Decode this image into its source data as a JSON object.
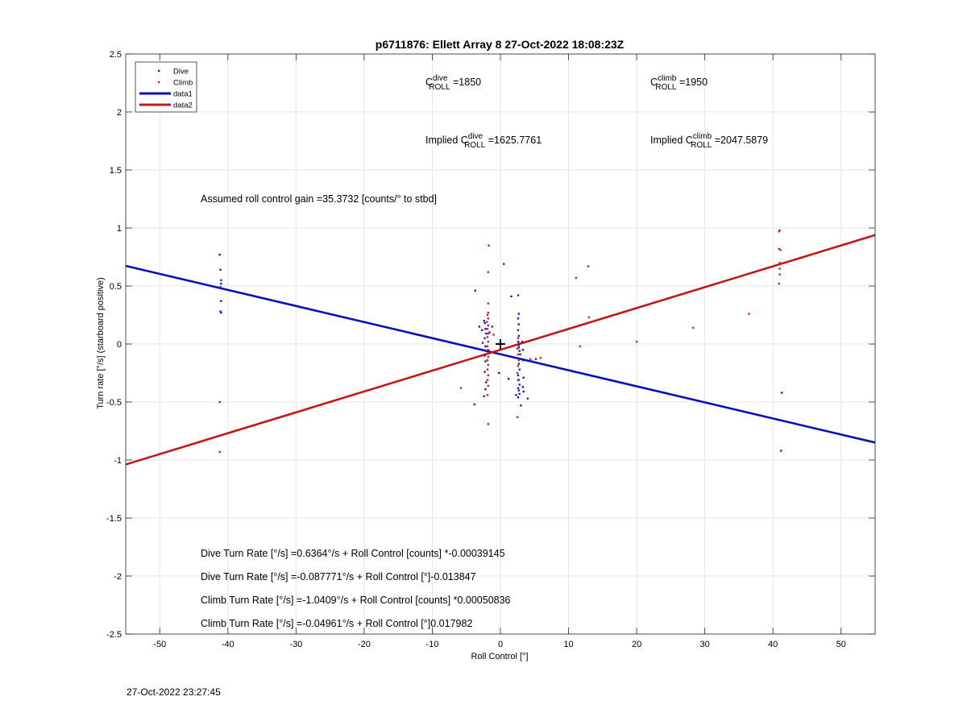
{
  "chart_data": {
    "type": "scatter",
    "title": "p6711876: Ellett Array 8 27-Oct-2022 18:08:23Z",
    "xlabel": "Roll Control [°]",
    "ylabel": "Turn rate [°/s] (starboard positive)",
    "xlim": [
      -55,
      55
    ],
    "ylim": [
      -2.5,
      2.5
    ],
    "x_ticks": [
      -50,
      -40,
      -30,
      -20,
      -10,
      0,
      10,
      20,
      30,
      40,
      50
    ],
    "y_ticks": [
      -2.5,
      -2,
      -1.5,
      -1,
      -0.5,
      0,
      0.5,
      1,
      1.5,
      2,
      2.5
    ],
    "x_tick_labels": [
      "-50",
      "-40",
      "-30",
      "-20",
      "-10",
      "0",
      "10",
      "20",
      "30",
      "40",
      "50"
    ],
    "y_tick_labels": [
      "-2.5",
      "-2",
      "-1.5",
      "-1",
      "-0.5",
      "0",
      "0.5",
      "1",
      "1.5",
      "2",
      "2.5"
    ],
    "grid": true,
    "legend_position": "top-left",
    "legend": [
      {
        "label": "Dive",
        "kind": "marker",
        "color": "#1f1fbf"
      },
      {
        "label": "Climb",
        "kind": "marker",
        "color": "#d42020"
      },
      {
        "label": "data1",
        "kind": "line",
        "color": "#0a10b8"
      },
      {
        "label": "data2",
        "kind": "line",
        "color": "#c41818"
      }
    ],
    "series": [
      {
        "name": "Dive",
        "color": "#1f1fbf",
        "points": [
          [
            -41.2,
            0.77
          ],
          [
            -41.1,
            0.64
          ],
          [
            -41.0,
            0.55
          ],
          [
            -41.0,
            0.52
          ],
          [
            -41.1,
            0.49
          ],
          [
            -41.0,
            0.37
          ],
          [
            -41.1,
            0.28
          ],
          [
            -41.0,
            0.27
          ],
          [
            -3.7,
            0.46
          ],
          [
            -3.1,
            0.15
          ],
          [
            -2.7,
            0.12
          ],
          [
            -2.4,
            0.2
          ],
          [
            -2.3,
            0.18
          ],
          [
            -2.2,
            0.13
          ],
          [
            -2.1,
            0.09
          ],
          [
            -2.3,
            0.05
          ],
          [
            -2.2,
            -0.02
          ],
          [
            -2.1,
            -0.06
          ],
          [
            -2.3,
            -0.1
          ],
          [
            -2.2,
            -0.15
          ],
          [
            -2.3,
            -0.24
          ],
          [
            -2.1,
            -0.33
          ],
          [
            -2.2,
            -0.39
          ],
          [
            -2.4,
            -0.45
          ],
          [
            -3.8,
            -0.52
          ],
          [
            -2.6,
            0.01
          ],
          [
            -1.6,
            0.1
          ],
          [
            -1.2,
            0.15
          ],
          [
            0.5,
            0.69
          ],
          [
            -0.2,
            -0.25
          ],
          [
            1.2,
            -0.3
          ],
          [
            1.6,
            0.41
          ],
          [
            2.3,
            -0.44
          ],
          [
            2.6,
            0.42
          ],
          [
            2.7,
            0.26
          ],
          [
            2.6,
            0.22
          ],
          [
            2.7,
            0.17
          ],
          [
            2.6,
            0.12
          ],
          [
            2.7,
            0.07
          ],
          [
            2.6,
            0.02
          ],
          [
            2.7,
            -0.01
          ],
          [
            2.7,
            -0.03
          ],
          [
            2.8,
            -0.06
          ],
          [
            2.9,
            -0.09
          ],
          [
            2.8,
            -0.13
          ],
          [
            2.7,
            -0.17
          ],
          [
            2.8,
            -0.22
          ],
          [
            2.6,
            -0.27
          ],
          [
            2.7,
            -0.31
          ],
          [
            2.8,
            -0.35
          ],
          [
            2.6,
            -0.38
          ],
          [
            2.7,
            -0.4
          ],
          [
            2.8,
            -0.43
          ],
          [
            2.6,
            -0.46
          ],
          [
            3.0,
            -0.53
          ],
          [
            3.2,
            0.02
          ],
          [
            3.3,
            -0.05
          ],
          [
            3.3,
            -0.14
          ],
          [
            3.4,
            -0.29
          ],
          [
            3.3,
            -0.37
          ],
          [
            3.4,
            -0.41
          ],
          [
            4.0,
            -0.47
          ],
          [
            5.2,
            -0.13
          ],
          [
            4.7,
            -0.15
          ],
          [
            41.3,
            -0.42
          ],
          [
            41.2,
            -0.92
          ]
        ]
      },
      {
        "name": "Climb",
        "color": "#d42020",
        "points": [
          [
            -41.2,
            -0.5
          ],
          [
            -41.2,
            -0.93
          ],
          [
            -1.7,
            0.85
          ],
          [
            -1.8,
            0.62
          ],
          [
            -1.8,
            0.35
          ],
          [
            -1.8,
            0.27
          ],
          [
            -1.9,
            0.25
          ],
          [
            -1.8,
            0.22
          ],
          [
            -2.0,
            0.19
          ],
          [
            -1.8,
            0.16
          ],
          [
            -1.9,
            0.13
          ],
          [
            -1.8,
            0.09
          ],
          [
            -1.9,
            0.06
          ],
          [
            -1.8,
            0.02
          ],
          [
            -1.9,
            -0.02
          ],
          [
            -1.8,
            -0.05
          ],
          [
            -1.9,
            -0.08
          ],
          [
            -1.8,
            -0.11
          ],
          [
            -1.9,
            -0.14
          ],
          [
            -1.8,
            -0.18
          ],
          [
            -1.9,
            -0.22
          ],
          [
            -1.8,
            -0.27
          ],
          [
            -1.9,
            -0.31
          ],
          [
            -1.8,
            -0.36
          ],
          [
            -1.9,
            -0.44
          ],
          [
            -1.8,
            -0.69
          ],
          [
            -5.8,
            -0.38
          ],
          [
            -1.0,
            0.08
          ],
          [
            2.6,
            0.05
          ],
          [
            2.7,
            0.01
          ],
          [
            2.5,
            -0.04
          ],
          [
            2.6,
            -0.09
          ],
          [
            2.7,
            -0.14
          ],
          [
            2.6,
            -0.19
          ],
          [
            2.5,
            -0.25
          ],
          [
            2.6,
            -0.31
          ],
          [
            2.5,
            -0.63
          ],
          [
            5.9,
            -0.12
          ],
          [
            4.4,
            -0.13
          ],
          [
            11.1,
            0.57
          ],
          [
            12.9,
            0.67
          ],
          [
            13.0,
            0.23
          ],
          [
            11.7,
            -0.02
          ],
          [
            20.0,
            0.02
          ],
          [
            28.3,
            0.14
          ],
          [
            36.5,
            0.26
          ],
          [
            41.0,
            0.98
          ],
          [
            40.9,
            0.97
          ],
          [
            40.9,
            0.82
          ],
          [
            41.1,
            0.81
          ],
          [
            41.0,
            0.7
          ],
          [
            41.0,
            0.65
          ],
          [
            41.0,
            0.6
          ],
          [
            40.9,
            0.52
          ]
        ]
      },
      {
        "name": "data1",
        "color": "#0a10b8",
        "line": {
          "intercept": -0.087771,
          "slope": -0.013847
        }
      },
      {
        "name": "data2",
        "color": "#c41818",
        "line": {
          "intercept": -0.04961,
          "slope": 0.017982
        }
      }
    ],
    "center_marker": [
      0,
      0
    ],
    "annotations": {
      "c_dive": {
        "prefix": "C",
        "sup": "dive",
        "sub": "ROLL",
        "value": " =1850"
      },
      "c_climb": {
        "prefix": "C",
        "sup": "climb",
        "sub": "ROLL",
        "value": " =1950"
      },
      "implied_dive": {
        "prefix": "Implied C",
        "sup": "dive",
        "sub": "ROLL",
        "value": " =1625.7761"
      },
      "implied_climb": {
        "prefix": "Implied C",
        "sup": "climb",
        "sub": "ROLL",
        "value": " =2047.5879"
      },
      "gain": "Assumed roll control gain =35.3732 [counts/° to stbd]",
      "eq1": "Dive Turn Rate [°/s] =0.6364°/s + Roll Control [counts] *-0.00039145",
      "eq2": "Dive Turn Rate [°/s] =-0.087771°/s + Roll Control [°]-0.013847",
      "eq3": "Climb Turn Rate [°/s] =-1.0409°/s + Roll Control [counts] *0.00050836",
      "eq4": "Climb Turn Rate [°/s] =-0.04961°/s + Roll Control [°]0.017982"
    }
  },
  "footer_timestamp": "27-Oct-2022 23:27:45"
}
